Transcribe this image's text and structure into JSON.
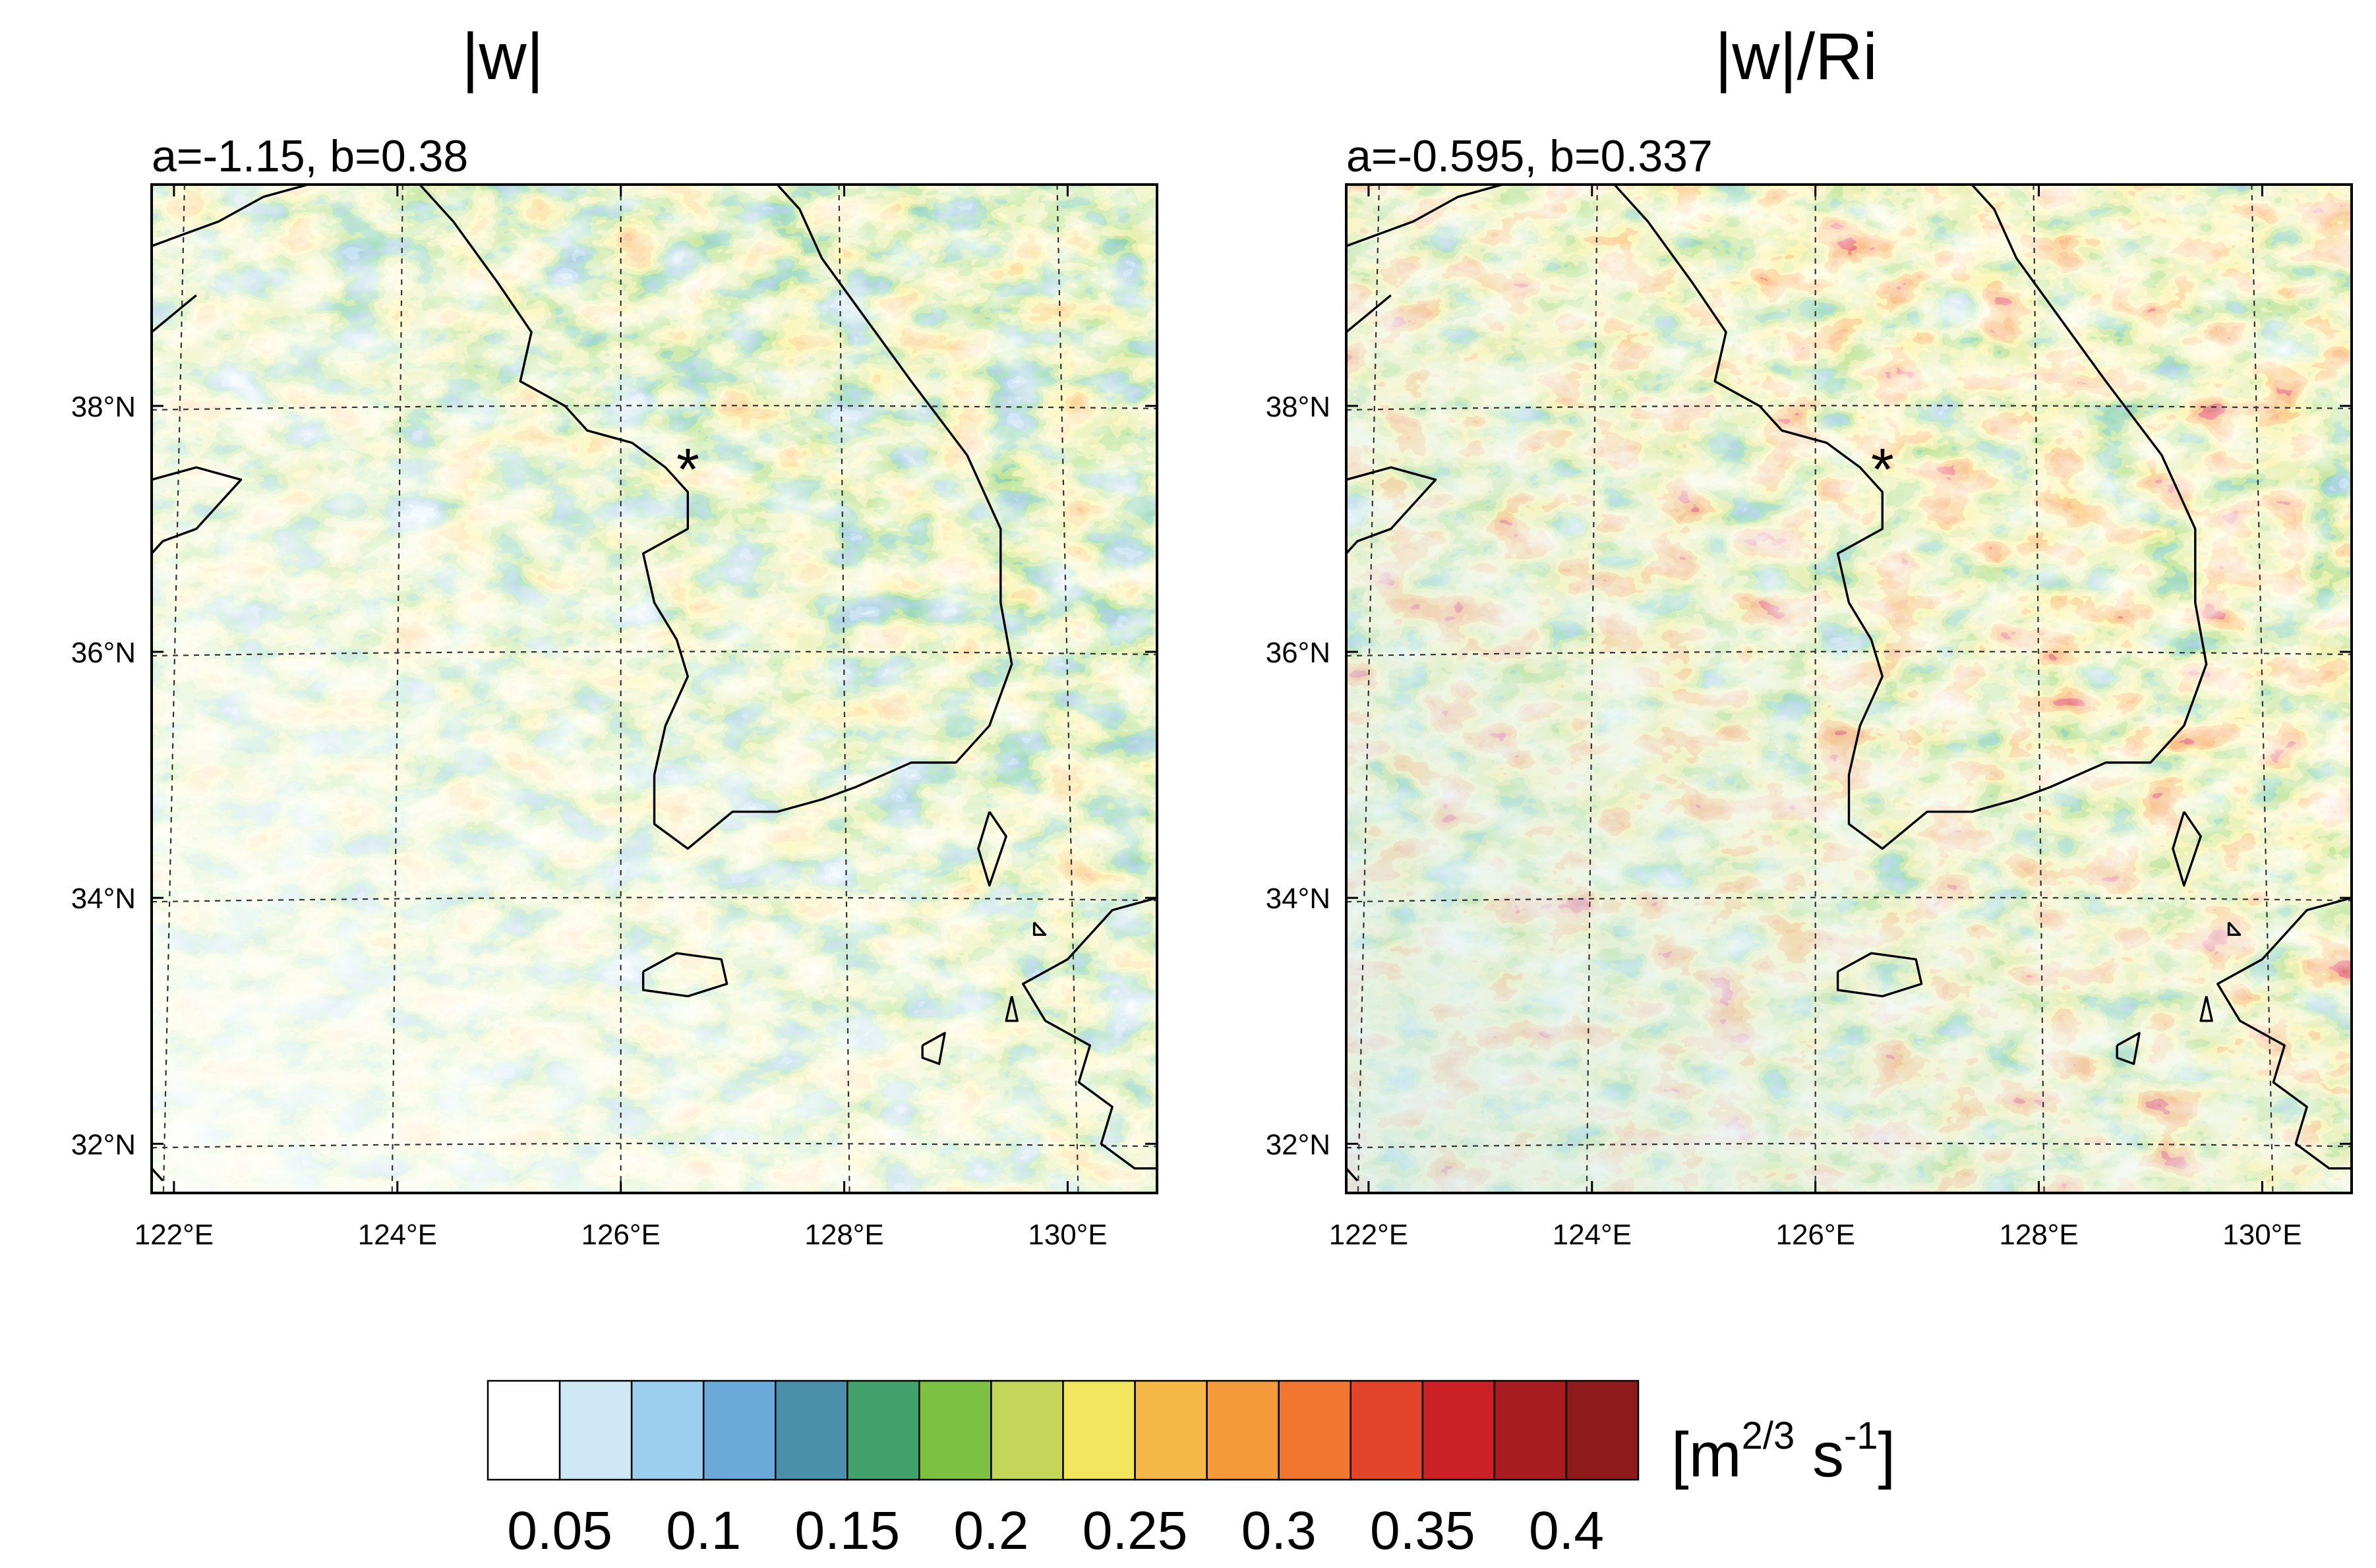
{
  "panels": [
    {
      "id": "left",
      "title": "|w|",
      "subtitle": "a=-1.15, b=0.38",
      "lat_labels": [
        "38°N",
        "36°N",
        "34°N",
        "32°N"
      ],
      "lon_labels": [
        "122°E",
        "124°E",
        "126°E",
        "128°E",
        "130°E"
      ],
      "marker": "*",
      "field_intensity": 0.3
    },
    {
      "id": "right",
      "title": "|w|/Ri",
      "subtitle": "a=-0.595, b=0.337",
      "lat_labels": [
        "38°N",
        "36°N",
        "34°N",
        "32°N"
      ],
      "lon_labels": [
        "122°E",
        "124°E",
        "126°E",
        "128°E",
        "130°E"
      ],
      "marker": "*",
      "field_intensity": 0.75
    }
  ],
  "map": {
    "lon_range": [
      121.8,
      130.8
    ],
    "lat_range": [
      31.6,
      39.8
    ],
    "lat_ticks": [
      38,
      36,
      34,
      32
    ],
    "lon_ticks": [
      122,
      124,
      126,
      128,
      130
    ],
    "marker_location": {
      "lon": 126.6,
      "lat": 37.5
    }
  },
  "colorbar": {
    "colors": [
      "#ffffff",
      "#cfe8f6",
      "#9ccfee",
      "#6aa9d8",
      "#4a90aa",
      "#41a36b",
      "#7cc142",
      "#c4d65a",
      "#f2e65e",
      "#f6b847",
      "#f59a3b",
      "#f1762f",
      "#e3452a",
      "#cb2026",
      "#a81c20",
      "#8f1a1b"
    ],
    "labels": [
      "0.05",
      "0.1",
      "0.15",
      "0.2",
      "0.25",
      "0.3",
      "0.35",
      "0.4"
    ],
    "unit_base": "[m",
    "unit_exp1": "2/3",
    "unit_mid": " s",
    "unit_exp2": "-1",
    "unit_end": "]"
  }
}
